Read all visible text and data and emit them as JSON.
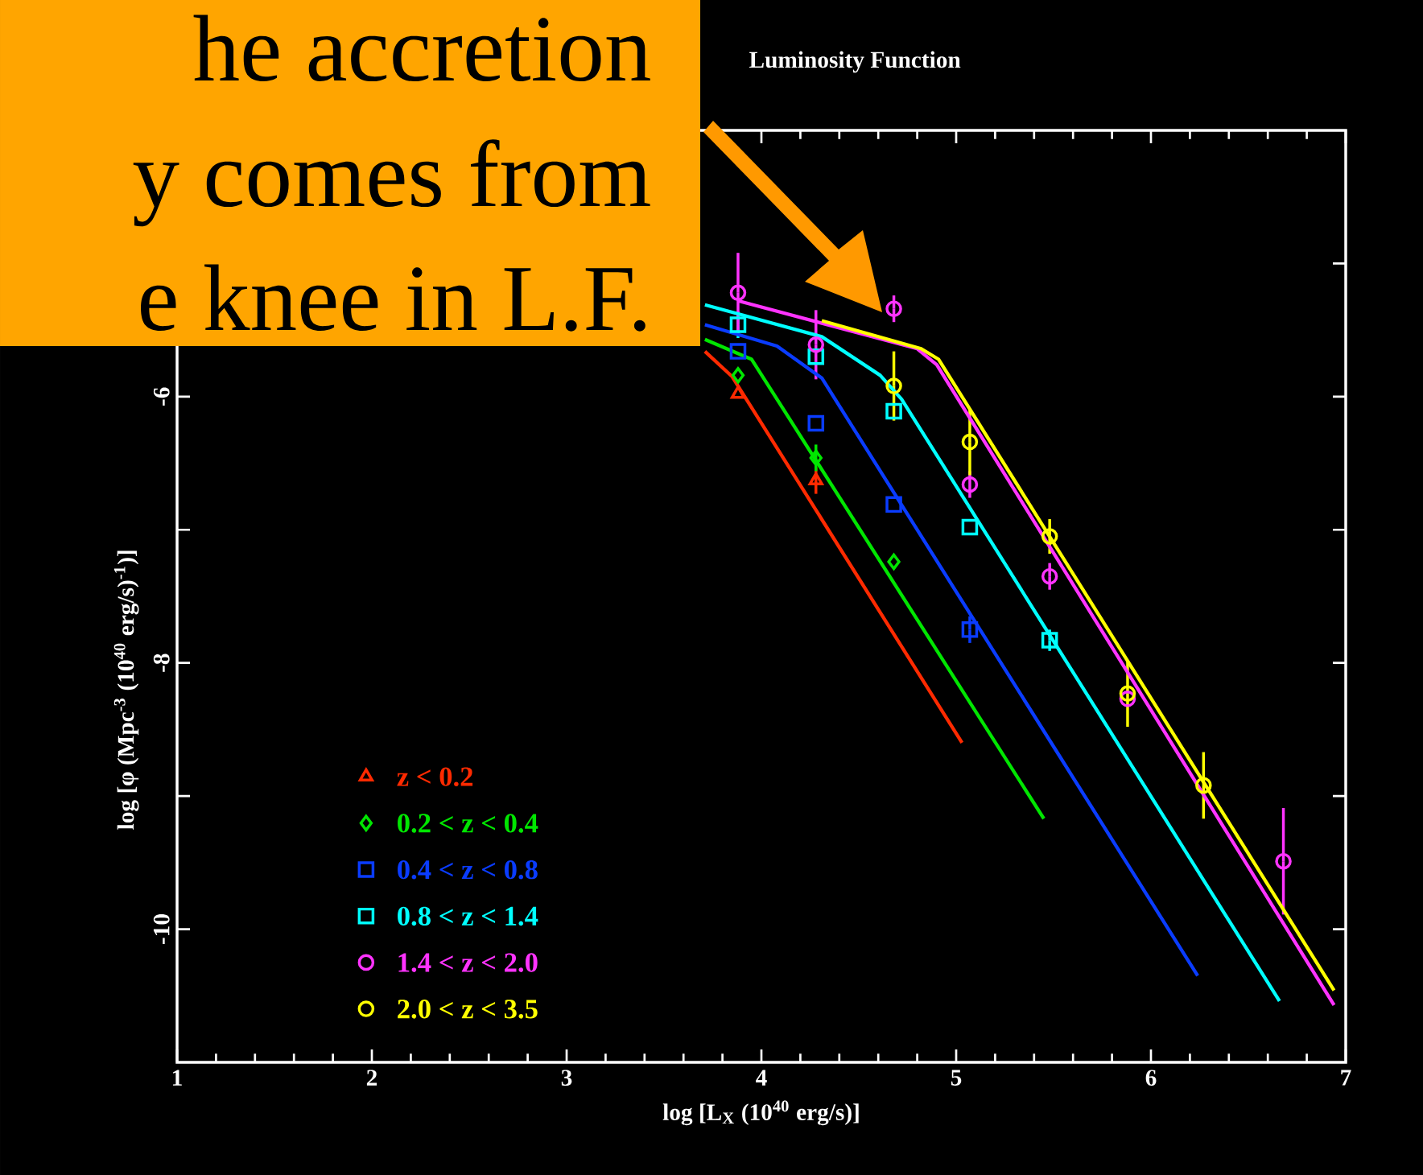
{
  "chart_data": {
    "type": "scatter",
    "title": "Luminosity Function",
    "xlabel": "log [L$_{X}$ (10$^{40}$ erg/s)]",
    "ylabel": "log [φ (Mpc$^{-3}$ (10$^{40}$ erg/s)$^{-1}$)]",
    "xlim": [
      1,
      7
    ],
    "ylim": [
      -11,
      -4
    ],
    "xticks": [
      1,
      2,
      3,
      4,
      5,
      6,
      7
    ],
    "yticks": [
      -10,
      {
        "value": -9,
        "label": null
      },
      -8,
      {
        "value": -7,
        "label": null
      },
      -6,
      {
        "value": -5,
        "label": null
      }
    ],
    "legend": "bottom left",
    "annotations": [
      "he accretion",
      "y comes from",
      "e knee in L.F."
    ],
    "series": [
      {
        "name": "z <  0.2",
        "type": "scatter",
        "marker": "triangle",
        "color": "#ff2a00",
        "x": [
          3.88,
          4.28
        ],
        "values": [
          -5.98,
          -6.63
        ],
        "errors": [
          null,
          0.1
        ]
      },
      {
        "name": "0.2  < z <  0.4",
        "type": "scatter",
        "marker": "diamond",
        "color": "#00e600",
        "x": [
          3.88,
          4.28,
          4.68
        ],
        "values": [
          -5.84,
          -6.46,
          -7.24
        ],
        "errors": [
          null,
          0.1,
          null
        ]
      },
      {
        "name": "0.4  < z <  0.8",
        "type": "scatter",
        "marker": "square",
        "color": "#0a3cff",
        "x": [
          3.88,
          4.28,
          4.68,
          5.07
        ],
        "values": [
          -5.66,
          -6.2,
          -6.81,
          -7.75
        ],
        "errors": [
          null,
          null,
          null,
          0.1
        ]
      },
      {
        "name": "0.8  < z <  1.4",
        "type": "scatter",
        "marker": "square",
        "color": "#00ffff",
        "x": [
          3.88,
          4.28,
          4.68,
          5.07,
          5.48
        ],
        "values": [
          -5.46,
          -5.7,
          -6.11,
          -6.98,
          -7.83
        ],
        "errors": [
          0.1,
          null,
          null,
          null,
          0.08
        ]
      },
      {
        "name": "1.4  < z <  2.0",
        "type": "scatter",
        "marker": "circle",
        "color": "#ff33ff",
        "x": [
          3.88,
          4.28,
          4.68,
          5.07,
          5.48,
          5.88,
          6.68
        ],
        "values": [
          -5.22,
          -5.61,
          -5.34,
          -6.66,
          -7.35,
          -8.27,
          -9.49
        ],
        "errors": [
          0.3,
          0.26,
          0.1,
          0.1,
          0.1,
          null,
          0.4
        ]
      },
      {
        "name": "2.0  < z <  3.5",
        "type": "scatter",
        "marker": "circle",
        "color": "#ffff00",
        "x": [
          4.68,
          5.07,
          5.48,
          5.88,
          6.27
        ],
        "values": [
          -5.92,
          -6.34,
          -7.05,
          -8.23,
          -8.92
        ],
        "errors": [
          0.26,
          0.25,
          0.13,
          0.25,
          0.25
        ]
      },
      {
        "type": "line",
        "color": "#ff2a00",
        "x": [
          3.71,
          3.85,
          5.03
        ],
        "values": [
          -5.66,
          -5.85,
          -8.6
        ]
      },
      {
        "type": "line",
        "color": "#00e600",
        "x": [
          3.71,
          3.95,
          5.45
        ],
        "values": [
          -5.57,
          -5.72,
          -9.17
        ]
      },
      {
        "type": "line",
        "color": "#0a3cff",
        "x": [
          3.71,
          4.08,
          4.31,
          6.24
        ],
        "values": [
          -5.46,
          -5.62,
          -5.86,
          -10.35
        ]
      },
      {
        "type": "line",
        "color": "#00ffff",
        "x": [
          3.71,
          4.31,
          4.61,
          4.72,
          6.66
        ],
        "values": [
          -5.31,
          -5.55,
          -5.84,
          -6.02,
          -10.54
        ]
      },
      {
        "type": "line",
        "color": "#ff33ff",
        "x": [
          3.88,
          4.8,
          4.9,
          6.94
        ],
        "values": [
          -5.28,
          -5.64,
          -5.76,
          -10.57
        ]
      },
      {
        "type": "line",
        "color": "#ffff00",
        "x": [
          4.31,
          4.82,
          4.91,
          6.94
        ],
        "values": [
          -5.43,
          -5.64,
          -5.72,
          -10.46
        ]
      }
    ]
  }
}
